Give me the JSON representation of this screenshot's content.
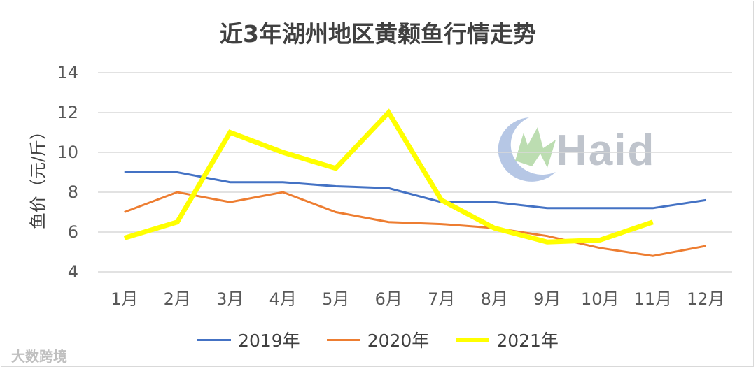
{
  "title": "近3年湖州地区黄颡鱼行情走势",
  "watermark": "大数跨境",
  "logo": {
    "text": "Haid",
    "colors": [
      "#9fb4d8",
      "#a6cf98"
    ]
  },
  "chart_data": {
    "type": "line",
    "title": "近3年湖州地区黄颡鱼行情走势",
    "ylabel": "鱼价（元/斤）",
    "xlabel": "",
    "categories": [
      "1月",
      "2月",
      "3月",
      "4月",
      "5月",
      "6月",
      "7月",
      "8月",
      "9月",
      "10月",
      "11月",
      "12月"
    ],
    "yticks": [
      "4",
      "6",
      "8",
      "10",
      "12",
      "14"
    ],
    "ylim": [
      4,
      14
    ],
    "grid": true,
    "legend_position": "bottom",
    "series": [
      {
        "name": "2019年",
        "color": "#4472c4",
        "values": [
          9.0,
          9.0,
          8.5,
          8.5,
          8.3,
          8.2,
          7.5,
          7.5,
          7.2,
          7.2,
          7.2,
          7.6
        ]
      },
      {
        "name": "2020年",
        "color": "#ed7d31",
        "values": [
          7.0,
          8.0,
          7.5,
          8.0,
          7.0,
          6.5,
          6.4,
          6.2,
          5.8,
          5.2,
          4.8,
          5.3
        ]
      },
      {
        "name": "2021年",
        "color": "#ffff00",
        "values": [
          5.7,
          6.5,
          11.0,
          10.0,
          9.2,
          12.0,
          7.6,
          6.2,
          5.5,
          5.6,
          6.5,
          null
        ]
      }
    ]
  }
}
